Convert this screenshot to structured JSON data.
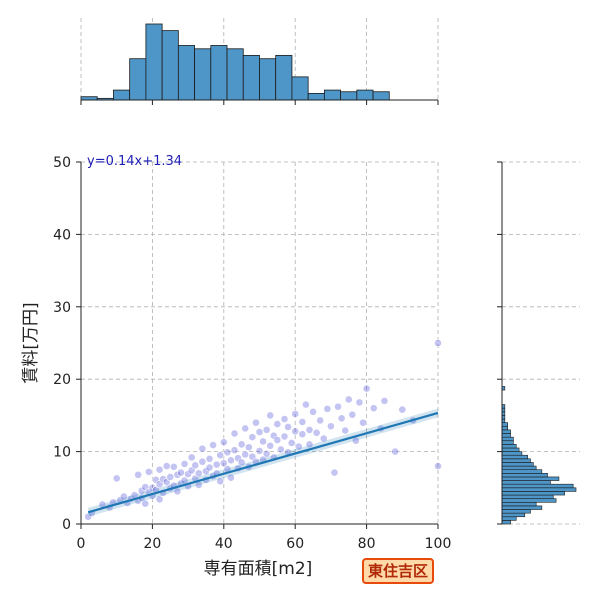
{
  "chart_data": {
    "type": "scatter",
    "xlabel": "専有面積[m2]",
    "ylabel": "賃料[万円]",
    "xlim": [
      0,
      100
    ],
    "ylim": [
      0,
      50
    ],
    "x_ticks": [
      "0",
      "20",
      "40",
      "60",
      "80",
      "100"
    ],
    "y_ticks": [
      "0",
      "10",
      "20",
      "30",
      "40",
      "50"
    ],
    "grid": true,
    "regression": {
      "equation": "y=0.14x+1.34",
      "slope": 0.14,
      "intercept": 1.34
    },
    "scatter_color": "#2b2bd0",
    "line_color": "#1f77b4",
    "hist_color": "#4f96c8",
    "points": [
      [
        2,
        1.0
      ],
      [
        3,
        1.5
      ],
      [
        6,
        2.7
      ],
      [
        8,
        2.3
      ],
      [
        9,
        3.0
      ],
      [
        10,
        6.3
      ],
      [
        11,
        3.3
      ],
      [
        12,
        3.8
      ],
      [
        13,
        2.9
      ],
      [
        14,
        3.5
      ],
      [
        15,
        4.0
      ],
      [
        16,
        3.2
      ],
      [
        16,
        6.8
      ],
      [
        17,
        4.6
      ],
      [
        17,
        3.6
      ],
      [
        18,
        5.1
      ],
      [
        18,
        2.8
      ],
      [
        19,
        4.4
      ],
      [
        19,
        7.2
      ],
      [
        20,
        5.0
      ],
      [
        20,
        3.9
      ],
      [
        21,
        6.1
      ],
      [
        21,
        4.7
      ],
      [
        22,
        5.5
      ],
      [
        22,
        7.5
      ],
      [
        22,
        3.4
      ],
      [
        23,
        6.2
      ],
      [
        23,
        4.3
      ],
      [
        24,
        5.8
      ],
      [
        24,
        8.0
      ],
      [
        25,
        6.5
      ],
      [
        25,
        4.9
      ],
      [
        26,
        5.3
      ],
      [
        26,
        7.9
      ],
      [
        27,
        6.8
      ],
      [
        27,
        4.5
      ],
      [
        28,
        7.1
      ],
      [
        28,
        5.6
      ],
      [
        29,
        8.3
      ],
      [
        29,
        6.0
      ],
      [
        30,
        6.9
      ],
      [
        30,
        5.2
      ],
      [
        31,
        7.4
      ],
      [
        31,
        9.2
      ],
      [
        32,
        6.3
      ],
      [
        32,
        8.1
      ],
      [
        33,
        7.0
      ],
      [
        33,
        5.4
      ],
      [
        34,
        8.6
      ],
      [
        34,
        10.4
      ],
      [
        35,
        7.3
      ],
      [
        35,
        6.1
      ],
      [
        36,
        9.0
      ],
      [
        36,
        7.8
      ],
      [
        37,
        6.6
      ],
      [
        37,
        10.9
      ],
      [
        38,
        8.2
      ],
      [
        38,
        7.0
      ],
      [
        39,
        9.5
      ],
      [
        39,
        5.9
      ],
      [
        40,
        8.4
      ],
      [
        40,
        11.3
      ],
      [
        41,
        7.6
      ],
      [
        41,
        9.9
      ],
      [
        42,
        8.8
      ],
      [
        42,
        6.4
      ],
      [
        43,
        10.2
      ],
      [
        43,
        12.5
      ],
      [
        44,
        9.1
      ],
      [
        44,
        7.7
      ],
      [
        45,
        11.0
      ],
      [
        45,
        8.5
      ],
      [
        46,
        9.6
      ],
      [
        46,
        13.2
      ],
      [
        47,
        7.9
      ],
      [
        47,
        10.6
      ],
      [
        48,
        12.0
      ],
      [
        48,
        9.3
      ],
      [
        49,
        8.6
      ],
      [
        49,
        14.0
      ],
      [
        50,
        10.1
      ],
      [
        50,
        12.7
      ],
      [
        51,
        8.9
      ],
      [
        51,
        11.4
      ],
      [
        52,
        13.0
      ],
      [
        52,
        9.7
      ],
      [
        53,
        10.8
      ],
      [
        53,
        15.0
      ],
      [
        54,
        12.2
      ],
      [
        54,
        9.2
      ],
      [
        55,
        11.6
      ],
      [
        55,
        13.8
      ],
      [
        56,
        10.3
      ],
      [
        57,
        14.5
      ],
      [
        57,
        12.1
      ],
      [
        58,
        9.9
      ],
      [
        58,
        13.4
      ],
      [
        59,
        11.2
      ],
      [
        60,
        15.2
      ],
      [
        60,
        12.8
      ],
      [
        61,
        10.7
      ],
      [
        62,
        14.1
      ],
      [
        62,
        12.4
      ],
      [
        63,
        16.5
      ],
      [
        64,
        13.0
      ],
      [
        64,
        11.0
      ],
      [
        65,
        15.5
      ],
      [
        66,
        12.6
      ],
      [
        67,
        14.3
      ],
      [
        68,
        11.8
      ],
      [
        69,
        15.9
      ],
      [
        70,
        13.5
      ],
      [
        71,
        7.1
      ],
      [
        72,
        16.2
      ],
      [
        73,
        14.6
      ],
      [
        74,
        12.9
      ],
      [
        75,
        17.2
      ],
      [
        76,
        15.1
      ],
      [
        77,
        11.5
      ],
      [
        78,
        16.8
      ],
      [
        79,
        14.0
      ],
      [
        80,
        18.7
      ],
      [
        82,
        16.0
      ],
      [
        84,
        13.2
      ],
      [
        85,
        17.0
      ],
      [
        88,
        10.0
      ],
      [
        90,
        15.8
      ],
      [
        93,
        14.3
      ],
      [
        100,
        25.0
      ],
      [
        100,
        8.0
      ]
    ],
    "x_hist": {
      "bin_width": 4.545,
      "counts": [
        2,
        1,
        6,
        25,
        46,
        42,
        33,
        31,
        33,
        31,
        27,
        25,
        27,
        14,
        4,
        6,
        5,
        6,
        5,
        0,
        0,
        0
      ]
    },
    "y_hist": {
      "bin_width": 0.5,
      "counts": [
        3,
        5,
        8,
        10,
        14,
        12,
        19,
        18,
        22,
        26,
        25,
        17,
        20,
        16,
        14,
        12,
        11,
        10,
        9,
        7,
        6,
        5,
        4,
        4,
        3,
        3,
        2,
        2,
        1,
        1,
        1,
        1,
        1,
        0,
        0,
        0,
        0,
        1
      ]
    }
  },
  "badge": {
    "label": "東住吉区"
  }
}
